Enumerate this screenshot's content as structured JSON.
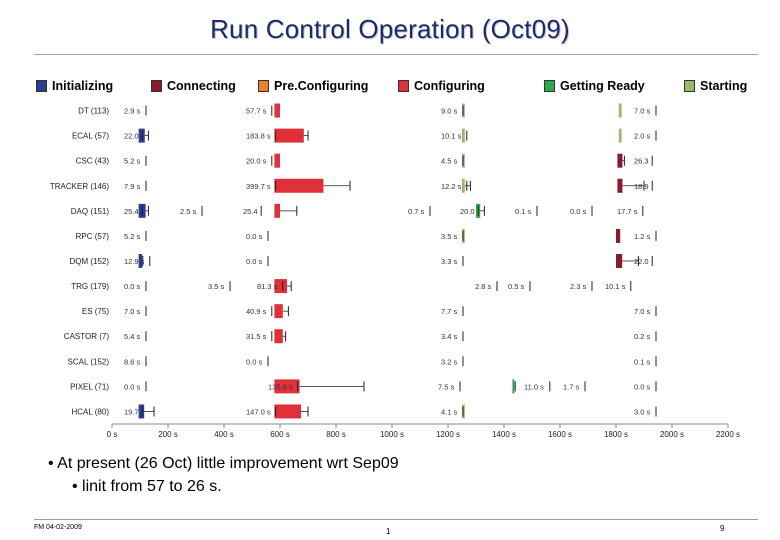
{
  "slide": {
    "title": "Run Control Operation (Oct09)",
    "bullet1": "• At present (26 Oct) little improvement wrt Sep09",
    "bullet2": "• linit from 57 to 26 s.",
    "footer_left": "FM 04-02-2009",
    "footer_mid": "1",
    "footer_right": "9"
  },
  "chart_data": {
    "type": "bar",
    "orientation": "horizontal",
    "layout": "timeline-gantt",
    "x_range": [
      0,
      2200
    ],
    "x_ticks": [
      "0 s",
      "200 s",
      "400 s",
      "600 s",
      "800 s",
      "1000 s",
      "1200 s",
      "1400 s",
      "1600 s",
      "1800 s",
      "2000 s",
      "2200 s"
    ],
    "phases": [
      {
        "name": "Initializing",
        "color": "#2c3e91"
      },
      {
        "name": "Connecting",
        "color": "#8a1a2e"
      },
      {
        "name": "Pre.Configuring",
        "color": "#e8832a"
      },
      {
        "name": "Configuring",
        "color": "#e0303a"
      },
      {
        "name": "Getting Ready",
        "color": "#2ea84a"
      },
      {
        "name": "Starting",
        "color": "#9ab870"
      }
    ],
    "categories": [
      "DT (113)",
      "ECAL (57)",
      "CSC (43)",
      "TRACKER (146)",
      "DAQ (151)",
      "RPC (57)",
      "DQM (152)",
      "TRG (179)",
      "ES (75)",
      "CASTOR (7)",
      "SCAL (152)",
      "PIXEL (71)",
      "HCAL (80)"
    ],
    "labels": [
      [
        "2.9 s",
        "57.7 s",
        "9.0 s",
        "7.0 s"
      ],
      [
        "22.0",
        "183.8 s",
        "10.1 s",
        "2.0 s"
      ],
      [
        "5.2 s",
        "20.0 s",
        "4.5 s",
        "26.3"
      ],
      [
        "7.9 s",
        "399.7 s",
        "12.2 s",
        "18.9"
      ],
      [
        "25.4",
        "2.5 s",
        "25.4",
        "0.7 s",
        "20.0",
        "0.1 s",
        "0.0 s",
        "17.7 s"
      ],
      [
        "5.2 s",
        "0.0 s",
        "3.5 s",
        "1.2 s"
      ],
      [
        "12.9 s",
        "0.0 s",
        "3.3 s",
        "22.0"
      ],
      [
        "0.0 s",
        "3.5 s",
        "81.3 s",
        "2.8 s",
        "0.5 s",
        "2.3 s",
        "10.1 s"
      ],
      [
        "7.0 s",
        "40.9 s",
        "7.7 s",
        "7.0 s"
      ],
      [
        "5.4 s",
        "31.5 s",
        "3.4 s",
        "0.2 s"
      ],
      [
        "8.6 s",
        "0.0 s",
        "3.2 s",
        "0.1 s"
      ],
      [
        "0.0 s",
        "135.6 s",
        "7.5 s",
        "11.0 s",
        "1.7 s",
        "0.0 s"
      ],
      [
        "19.7",
        "147.0 s",
        "4.1 s",
        "3.0 s"
      ]
    ],
    "bars": [
      [
        {
          "p": 3,
          "s": 580,
          "d": 20,
          "e": 600
        },
        {
          "p": 5,
          "s": 1250,
          "d": 10,
          "e": 1260
        },
        {
          "p": 5,
          "s": 1810,
          "d": 10,
          "e": 1820
        }
      ],
      [
        {
          "p": 0,
          "s": 95,
          "d": 22,
          "e": 130
        },
        {
          "p": 3,
          "s": 580,
          "d": 105,
          "e": 700
        },
        {
          "p": 5,
          "s": 1250,
          "d": 10,
          "e": 1260
        },
        {
          "p": 5,
          "s": 1810,
          "d": 10,
          "e": 1820
        }
      ],
      [
        {
          "p": 3,
          "s": 580,
          "d": 20,
          "e": 600
        },
        {
          "p": 5,
          "s": 1250,
          "d": 10,
          "e": 1260
        },
        {
          "p": 1,
          "s": 1805,
          "d": 18,
          "e": 1830
        }
      ],
      [
        {
          "p": 3,
          "s": 580,
          "d": 175,
          "e": 850
        },
        {
          "p": 5,
          "s": 1250,
          "d": 10,
          "e": 1280
        },
        {
          "p": 1,
          "s": 1805,
          "d": 18,
          "e": 1900
        }
      ],
      [
        {
          "p": 0,
          "s": 95,
          "d": 25,
          "e": 130
        },
        {
          "p": 3,
          "s": 580,
          "d": 20,
          "e": 660
        },
        {
          "p": 4,
          "s": 1300,
          "d": 15,
          "e": 1330
        }
      ],
      [
        {
          "p": 5,
          "s": 1250,
          "d": 10,
          "e": 1260
        },
        {
          "p": 1,
          "s": 1800,
          "d": 15,
          "e": 1815
        }
      ],
      [
        {
          "p": 0,
          "s": 95,
          "d": 13,
          "e": 110
        },
        {
          "p": 1,
          "s": 1800,
          "d": 22,
          "e": 1880
        }
      ],
      [
        {
          "p": 3,
          "s": 580,
          "d": 45,
          "e": 640
        }
      ],
      [
        {
          "p": 3,
          "s": 580,
          "d": 30,
          "e": 630
        }
      ],
      [
        {
          "p": 3,
          "s": 580,
          "d": 30,
          "e": 620
        }
      ],
      [],
      [
        {
          "p": 3,
          "s": 580,
          "d": 90,
          "e": 900
        },
        {
          "p": 4,
          "s": 1430,
          "d": 5,
          "e": 1440
        }
      ],
      [
        {
          "p": 0,
          "s": 95,
          "d": 20,
          "e": 150
        },
        {
          "p": 3,
          "s": 580,
          "d": 95,
          "e": 700
        },
        {
          "p": 5,
          "s": 1250,
          "d": 10,
          "e": 1260
        }
      ]
    ],
    "grid": false,
    "legend": "top"
  }
}
